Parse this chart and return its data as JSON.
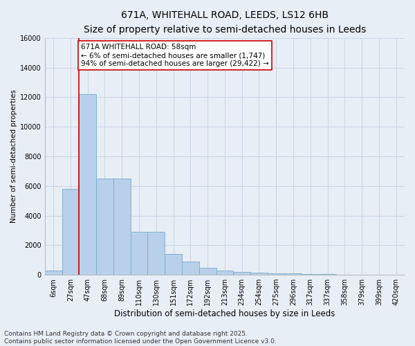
{
  "title1": "671A, WHITEHALL ROAD, LEEDS, LS12 6HB",
  "title2": "Size of property relative to semi-detached houses in Leeds",
  "xlabel": "Distribution of semi-detached houses by size in Leeds",
  "ylabel": "Number of semi-detached properties",
  "categories": [
    "6sqm",
    "27sqm",
    "47sqm",
    "68sqm",
    "89sqm",
    "110sqm",
    "130sqm",
    "151sqm",
    "172sqm",
    "192sqm",
    "213sqm",
    "234sqm",
    "254sqm",
    "275sqm",
    "296sqm",
    "317sqm",
    "337sqm",
    "358sqm",
    "379sqm",
    "399sqm",
    "420sqm"
  ],
  "bar_values": [
    300,
    5800,
    12200,
    6500,
    6500,
    2900,
    2900,
    1400,
    900,
    450,
    300,
    200,
    150,
    100,
    80,
    50,
    30,
    20,
    10,
    5,
    2
  ],
  "bar_color": "#b8d0ea",
  "bar_edge_color": "#7aaac8",
  "grid_color": "#c8d4e4",
  "background_color": "#e8eef6",
  "vline_color": "#cc0000",
  "annotation_text": "671A WHITEHALL ROAD: 58sqm\n← 6% of semi-detached houses are smaller (1,747)\n94% of semi-detached houses are larger (29,422) →",
  "annotation_box_color": "#ffffff",
  "annotation_box_edge": "#cc0000",
  "ylim": [
    0,
    16000
  ],
  "yticks": [
    0,
    2000,
    4000,
    6000,
    8000,
    10000,
    12000,
    14000,
    16000
  ],
  "footer": "Contains HM Land Registry data © Crown copyright and database right 2025.\nContains public sector information licensed under the Open Government Licence v3.0.",
  "title1_fontsize": 10,
  "title2_fontsize": 9,
  "xlabel_fontsize": 8.5,
  "ylabel_fontsize": 7.5,
  "tick_fontsize": 7,
  "annotation_fontsize": 7.5,
  "footer_fontsize": 6.5
}
